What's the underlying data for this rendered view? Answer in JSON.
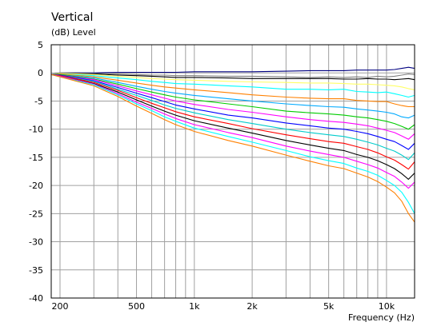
{
  "chart_data": {
    "type": "line",
    "title": "Vertical",
    "ylabel": "(dB)  Level",
    "xlabel": "Frequency  (Hz)",
    "x_scale": "log",
    "xlim": [
      180,
      14000
    ],
    "ylim": [
      -40,
      5
    ],
    "grid": true,
    "x_tick_labels": [
      {
        "value": 200,
        "label": "200"
      },
      {
        "value": 500,
        "label": "500"
      },
      {
        "value": 1000,
        "label": "1k"
      },
      {
        "value": 2000,
        "label": "2k"
      },
      {
        "value": 5000,
        "label": "5k"
      },
      {
        "value": 10000,
        "label": "10k"
      }
    ],
    "x_gridlines": [
      200,
      300,
      400,
      500,
      600,
      700,
      800,
      900,
      1000,
      2000,
      3000,
      4000,
      5000,
      6000,
      7000,
      8000,
      9000,
      10000
    ],
    "y_ticks": [
      5,
      0,
      -5,
      -10,
      -15,
      -20,
      -25,
      -30,
      -35,
      -40
    ],
    "x": [
      180,
      200,
      300,
      400,
      500,
      600,
      700,
      800,
      1000,
      1500,
      2000,
      3000,
      4000,
      5000,
      6000,
      7000,
      8000,
      9000,
      10000,
      11000,
      12000,
      13000,
      14000
    ],
    "series": [
      {
        "color": "#000080",
        "values": [
          -0.3,
          0,
          0,
          0.1,
          0.1,
          0.1,
          0.1,
          0.1,
          0.2,
          0.2,
          0.2,
          0.3,
          0.4,
          0.4,
          0.4,
          0.5,
          0.5,
          0.5,
          0.5,
          0.6,
          0.8,
          1.0,
          0.8
        ]
      },
      {
        "color": "#808080",
        "values": [
          -0.3,
          0,
          -0.1,
          -0.2,
          -0.3,
          -0.4,
          -0.4,
          -0.5,
          -0.5,
          -0.6,
          -0.6,
          -0.7,
          -0.8,
          -0.7,
          -0.8,
          -0.7,
          -0.8,
          -0.6,
          -0.7,
          -0.6,
          -0.4,
          -0.2,
          -0.3
        ]
      },
      {
        "color": "#000000",
        "values": [
          -0.3,
          -0.1,
          -0.2,
          -0.4,
          -0.5,
          -0.6,
          -0.7,
          -0.8,
          -0.8,
          -0.9,
          -1.0,
          -1.0,
          -1.0,
          -1.0,
          -1.1,
          -1.1,
          -1.0,
          -1.1,
          -1.1,
          -1.2,
          -1.1,
          -1.0,
          -1.2
        ]
      },
      {
        "color": "#ffff66",
        "values": [
          -0.3,
          -0.1,
          -0.3,
          -0.6,
          -0.8,
          -1.0,
          -1.1,
          -1.2,
          -1.3,
          -1.5,
          -1.6,
          -1.7,
          -1.8,
          -1.8,
          -1.9,
          -2.0,
          -2.0,
          -2.1,
          -2.2,
          -2.3,
          -2.5,
          -2.8,
          -3.0
        ]
      },
      {
        "color": "#00ffff",
        "values": [
          -0.3,
          -0.2,
          -0.5,
          -0.9,
          -1.2,
          -1.5,
          -1.7,
          -1.9,
          -2.0,
          -2.3,
          -2.5,
          -2.9,
          -2.9,
          -3.0,
          -2.9,
          -3.3,
          -3.4,
          -3.5,
          -3.4,
          -3.7,
          -4.0,
          -4.3,
          -4.0
        ]
      },
      {
        "color": "#ff8000",
        "values": [
          -0.3,
          -0.2,
          -0.7,
          -1.3,
          -1.8,
          -2.2,
          -2.5,
          -2.7,
          -3.0,
          -3.5,
          -3.9,
          -4.3,
          -4.5,
          -4.6,
          -4.6,
          -4.9,
          -5.0,
          -5.1,
          -5.1,
          -5.5,
          -5.8,
          -6.0,
          -6.0
        ]
      },
      {
        "color": "#00aaff",
        "values": [
          -0.3,
          -0.3,
          -0.9,
          -1.7,
          -2.4,
          -2.9,
          -3.3,
          -3.6,
          -4.0,
          -4.6,
          -5.0,
          -5.5,
          -5.8,
          -6.0,
          -6.1,
          -6.4,
          -6.6,
          -6.8,
          -7.0,
          -7.3,
          -7.8,
          -8.0,
          -7.5
        ]
      },
      {
        "color": "#00cc00",
        "values": [
          -0.3,
          -0.3,
          -1.1,
          -2.0,
          -2.8,
          -3.4,
          -3.9,
          -4.3,
          -4.8,
          -5.5,
          -6.0,
          -6.8,
          -7.1,
          -7.3,
          -7.5,
          -7.8,
          -8.0,
          -8.3,
          -8.6,
          -9.0,
          -9.5,
          -10.0,
          -9.2
        ]
      },
      {
        "color": "#ff00ff",
        "values": [
          -0.3,
          -0.4,
          -1.2,
          -2.3,
          -3.2,
          -3.9,
          -4.5,
          -5.0,
          -5.6,
          -6.5,
          -7.0,
          -7.8,
          -8.3,
          -8.6,
          -8.8,
          -9.1,
          -9.4,
          -9.8,
          -10.2,
          -10.6,
          -11.2,
          -11.8,
          -10.8
        ]
      },
      {
        "color": "#0000ff",
        "values": [
          -0.3,
          -0.4,
          -1.4,
          -2.6,
          -3.6,
          -4.4,
          -5.1,
          -5.7,
          -6.4,
          -7.5,
          -8.0,
          -8.9,
          -9.4,
          -9.8,
          -10.0,
          -10.4,
          -10.8,
          -11.3,
          -11.8,
          -12.2,
          -12.9,
          -13.6,
          -12.5
        ]
      },
      {
        "color": "#00cccc",
        "values": [
          -0.3,
          -0.5,
          -1.5,
          -2.9,
          -4.0,
          -4.9,
          -5.7,
          -6.3,
          -7.1,
          -8.3,
          -9.0,
          -10.0,
          -10.6,
          -11.0,
          -11.3,
          -11.8,
          -12.3,
          -12.8,
          -13.4,
          -13.9,
          -14.6,
          -15.4,
          -14.2
        ]
      },
      {
        "color": "#ff0000",
        "values": [
          -0.3,
          -0.5,
          -1.7,
          -3.1,
          -4.4,
          -5.4,
          -6.2,
          -6.9,
          -7.8,
          -9.0,
          -9.9,
          -11.0,
          -11.7,
          -12.2,
          -12.5,
          -13.1,
          -13.6,
          -14.2,
          -14.9,
          -15.5,
          -16.3,
          -17.1,
          -15.8
        ]
      },
      {
        "color": "#000000",
        "values": [
          -0.3,
          -0.6,
          -1.9,
          -3.4,
          -4.8,
          -5.9,
          -6.8,
          -7.5,
          -8.5,
          -9.8,
          -10.7,
          -12.0,
          -12.8,
          -13.4,
          -13.8,
          -14.5,
          -15.0,
          -15.6,
          -16.3,
          -17.0,
          -17.9,
          -18.9,
          -17.8
        ]
      },
      {
        "color": "#ff00ff",
        "values": [
          -0.3,
          -0.6,
          -2.0,
          -3.7,
          -5.2,
          -6.3,
          -7.3,
          -8.1,
          -9.2,
          -10.6,
          -11.5,
          -13.0,
          -13.9,
          -14.5,
          -15.0,
          -15.7,
          -16.3,
          -16.9,
          -17.7,
          -18.4,
          -19.4,
          -20.5,
          -19.4
        ]
      },
      {
        "color": "#00ffff",
        "values": [
          -0.3,
          -0.7,
          -2.1,
          -3.9,
          -5.5,
          -6.7,
          -7.8,
          -8.6,
          -9.8,
          -11.3,
          -12.3,
          -13.8,
          -14.9,
          -15.6,
          -16.1,
          -16.9,
          -17.5,
          -18.2,
          -19.1,
          -20.0,
          -21.2,
          -23.0,
          -25.0
        ]
      },
      {
        "color": "#ff8000",
        "values": [
          -0.3,
          -0.7,
          -2.3,
          -4.2,
          -5.9,
          -7.2,
          -8.3,
          -9.2,
          -10.4,
          -12.0,
          -13.0,
          -14.6,
          -15.7,
          -16.5,
          -17.0,
          -17.8,
          -18.5,
          -19.3,
          -20.3,
          -21.3,
          -22.8,
          -25.0,
          -26.5
        ]
      }
    ]
  }
}
